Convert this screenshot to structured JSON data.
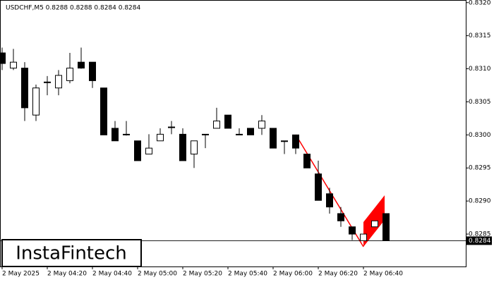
{
  "chart_data": {
    "type": "candlestick",
    "title": "USDCHF,M5  0.8288 0.8288 0.8284 0.8284",
    "watermark": "InstaFintech",
    "categories": [
      "2 May 2025",
      null,
      null,
      null,
      "2 May 04:20",
      null,
      null,
      null,
      "2 May 04:40",
      null,
      null,
      null,
      "2 May 05:00",
      null,
      null,
      null,
      "2 May 05:20",
      null,
      null,
      null,
      "2 May 05:40",
      null,
      null,
      null,
      "2 May 06:00",
      null,
      null,
      null,
      "2 May 06:20",
      null,
      null,
      null,
      "2 May 06:40",
      null,
      null
    ],
    "open": [
      0.83124,
      0.83101,
      0.83101,
      0.8303,
      0.83079,
      0.83071,
      0.83082,
      0.8311,
      0.8311,
      0.83071,
      0.8301,
      0.83001,
      0.82991,
      0.82971,
      0.82991,
      0.83011,
      0.83001,
      0.82971,
      0.83,
      0.8301,
      0.8303,
      0.83001,
      0.8301,
      0.8301,
      0.8301,
      0.82991,
      0.83,
      0.82971,
      0.82941,
      0.82911,
      0.82881,
      0.82861,
      0.8284,
      0.82861,
      0.82881
    ],
    "high": [
      0.83132,
      0.8313,
      0.8311,
      0.83076,
      0.83089,
      0.83098,
      0.83124,
      0.83132,
      0.8311,
      0.83071,
      0.83021,
      0.83021,
      0.82991,
      0.83001,
      0.8301,
      0.83021,
      0.8301,
      0.82991,
      0.83001,
      0.83041,
      0.8303,
      0.8301,
      0.8301,
      0.8303,
      0.8301,
      0.82991,
      0.83,
      0.82971,
      0.82961,
      0.8292,
      0.82891,
      0.82861,
      0.8285,
      0.8287,
      0.82881
    ],
    "low": [
      0.83098,
      0.83098,
      0.83021,
      0.83021,
      0.8306,
      0.8306,
      0.83078,
      0.831,
      0.83071,
      0.83,
      0.82991,
      0.82999,
      0.82961,
      0.82971,
      0.82991,
      0.83001,
      0.82961,
      0.8295,
      0.8298,
      0.8301,
      0.8301,
      0.83,
      0.83,
      0.83,
      0.8298,
      0.82971,
      0.82971,
      0.8295,
      0.82901,
      0.82881,
      0.82861,
      0.82841,
      0.8284,
      0.82861,
      0.8284
    ],
    "close": [
      0.83108,
      0.8311,
      0.83041,
      0.83071,
      0.8308,
      0.8309,
      0.83101,
      0.83101,
      0.83082,
      0.83,
      0.82991,
      0.83,
      0.82961,
      0.8298,
      0.83001,
      0.83012,
      0.82961,
      0.82991,
      0.83001,
      0.83021,
      0.8301,
      0.83,
      0.83,
      0.83021,
      0.8298,
      0.8299,
      0.8298,
      0.8295,
      0.82901,
      0.82891,
      0.8287,
      0.8285,
      0.8285,
      0.8287,
      0.8284
    ],
    "up_color": "#ffffff",
    "down_color": "#000000",
    "last_price": 0.8284,
    "ylim": [
      0.82801,
      0.83204
    ],
    "yticks": [
      {
        "value": 0.832,
        "label": "0.8320"
      },
      0.8315,
      {
        "value": 0.831,
        "label": "0.8310"
      },
      0.8305,
      {
        "value": 0.83,
        "label": "0.8300"
      },
      0.8295,
      {
        "value": 0.829,
        "label": "0.8290"
      },
      0.8285
    ]
  }
}
